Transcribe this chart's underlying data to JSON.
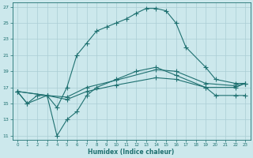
{
  "xlabel": "Humidex (Indice chaleur)",
  "bg_color": "#cce8ec",
  "grid_color": "#aacdd4",
  "line_color": "#1e7070",
  "xmin": -0.5,
  "xmax": 23.5,
  "ymin": 10.5,
  "ymax": 27.5,
  "xticks": [
    0,
    1,
    2,
    3,
    4,
    5,
    6,
    7,
    8,
    9,
    10,
    11,
    12,
    13,
    14,
    15,
    16,
    17,
    18,
    19,
    20,
    21,
    22,
    23
  ],
  "yticks": [
    11,
    13,
    15,
    17,
    19,
    21,
    23,
    25,
    27
  ],
  "line1_x": [
    0,
    1,
    2,
    3,
    4,
    5,
    6,
    7,
    8,
    9,
    10,
    11,
    12,
    13,
    14,
    15,
    16,
    17,
    19,
    20,
    22,
    23
  ],
  "line1_y": [
    16.5,
    15,
    16,
    16,
    14.5,
    17,
    21,
    22.5,
    24,
    24.5,
    25,
    25.5,
    26.2,
    26.8,
    26.8,
    26.5,
    25,
    22,
    19.5,
    18,
    17.5,
    17.5
  ],
  "line2_x": [
    0,
    1,
    3,
    4,
    5,
    6,
    7,
    8,
    10,
    12,
    14,
    16,
    19,
    20,
    22,
    23
  ],
  "line2_y": [
    16.5,
    15,
    16,
    11,
    13,
    14,
    16,
    17,
    18,
    19,
    19.5,
    18.5,
    17,
    16,
    16,
    16
  ],
  "line3_x": [
    0,
    3,
    5,
    7,
    10,
    14,
    16,
    19,
    22,
    23
  ],
  "line3_y": [
    16.5,
    16,
    15.5,
    16.5,
    17.3,
    18.2,
    18.0,
    17.0,
    17.0,
    17.5
  ],
  "line4_x": [
    0,
    3,
    5,
    7,
    10,
    14,
    16,
    19,
    22,
    23
  ],
  "line4_y": [
    16.5,
    16,
    15.8,
    17.0,
    17.9,
    19.2,
    19.0,
    17.5,
    17.2,
    17.5
  ]
}
